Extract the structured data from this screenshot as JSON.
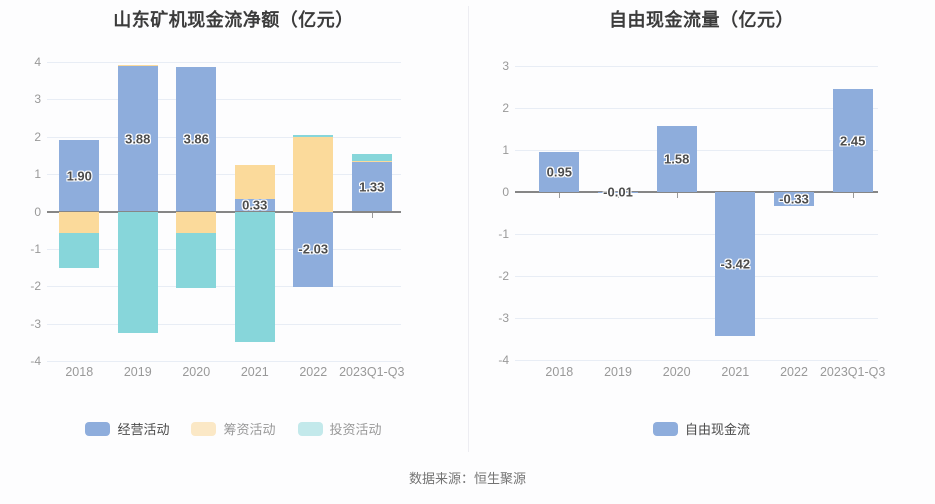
{
  "footer": {
    "source_text": "数据来源：恒生聚源"
  },
  "colors": {
    "background": "#fdfdfe",
    "title": "#3c3c3c",
    "grid_line": "#e8edf5",
    "zero_axis_line": "#868686",
    "tick_label": "#999999",
    "bar_value_label": "#4d4d4d",
    "footer_text": "#737373",
    "divider": "#ededf2",
    "series_blue": "#8EADDC",
    "series_yellow": "#FBDA9B",
    "series_teal": "#87D6DA"
  },
  "chart_data": [
    {
      "type": "stacked-bar",
      "title": "山东矿机现金流净额（亿元）",
      "categories": [
        "2018",
        "2019",
        "2020",
        "2021",
        "2022",
        "2023Q1-Q3"
      ],
      "ylim": [
        -4,
        4
      ],
      "y_ticks": [
        4,
        3,
        2,
        1,
        0,
        -1,
        -2,
        -3,
        -4
      ],
      "grid": true,
      "legend_position": "bottom",
      "series": [
        {
          "key": "operating",
          "name": "经营活动",
          "color": "#8EADDC",
          "legend_color": "#8EADDC",
          "legend_text_color": "#4a4a4a",
          "values": [
            1.9,
            3.88,
            3.86,
            0.33,
            -2.03,
            1.33
          ],
          "labels": [
            "1.90",
            "3.88",
            "3.86",
            "0.33",
            "-2.03",
            "1.33"
          ]
        },
        {
          "key": "financing",
          "name": "筹资活动",
          "color": "#FBDA9B",
          "legend_color": "#FBE8C6",
          "legend_text_color": "#999999",
          "values": [
            -0.57,
            0.05,
            -0.58,
            0.92,
            2.0,
            0.03
          ]
        },
        {
          "key": "investing",
          "name": "投资活动",
          "color": "#87D6DA",
          "legend_color": "#C3E9EB",
          "legend_text_color": "#999999",
          "values": [
            -0.93,
            -3.25,
            -1.47,
            -3.5,
            0.05,
            0.19
          ]
        }
      ]
    },
    {
      "type": "bar",
      "title": "自由现金流量（亿元）",
      "categories": [
        "2018",
        "2019",
        "2020",
        "2021",
        "2022",
        "2023Q1-Q3"
      ],
      "ylim": [
        -4,
        3
      ],
      "y_ticks": [
        3,
        2,
        1,
        0,
        -1,
        -2,
        -3,
        -4
      ],
      "grid": true,
      "legend_position": "bottom",
      "series": [
        {
          "key": "free-cash-flow",
          "name": "自由现金流",
          "color": "#8EADDC",
          "legend_color": "#8EADDC",
          "legend_text_color": "#4a4a4a",
          "values": [
            0.95,
            -0.01,
            1.58,
            -3.42,
            -0.33,
            2.45
          ],
          "labels": [
            "0.95",
            "-0.01",
            "1.58",
            "-3.42",
            "-0.33",
            "2.45"
          ]
        }
      ]
    }
  ]
}
